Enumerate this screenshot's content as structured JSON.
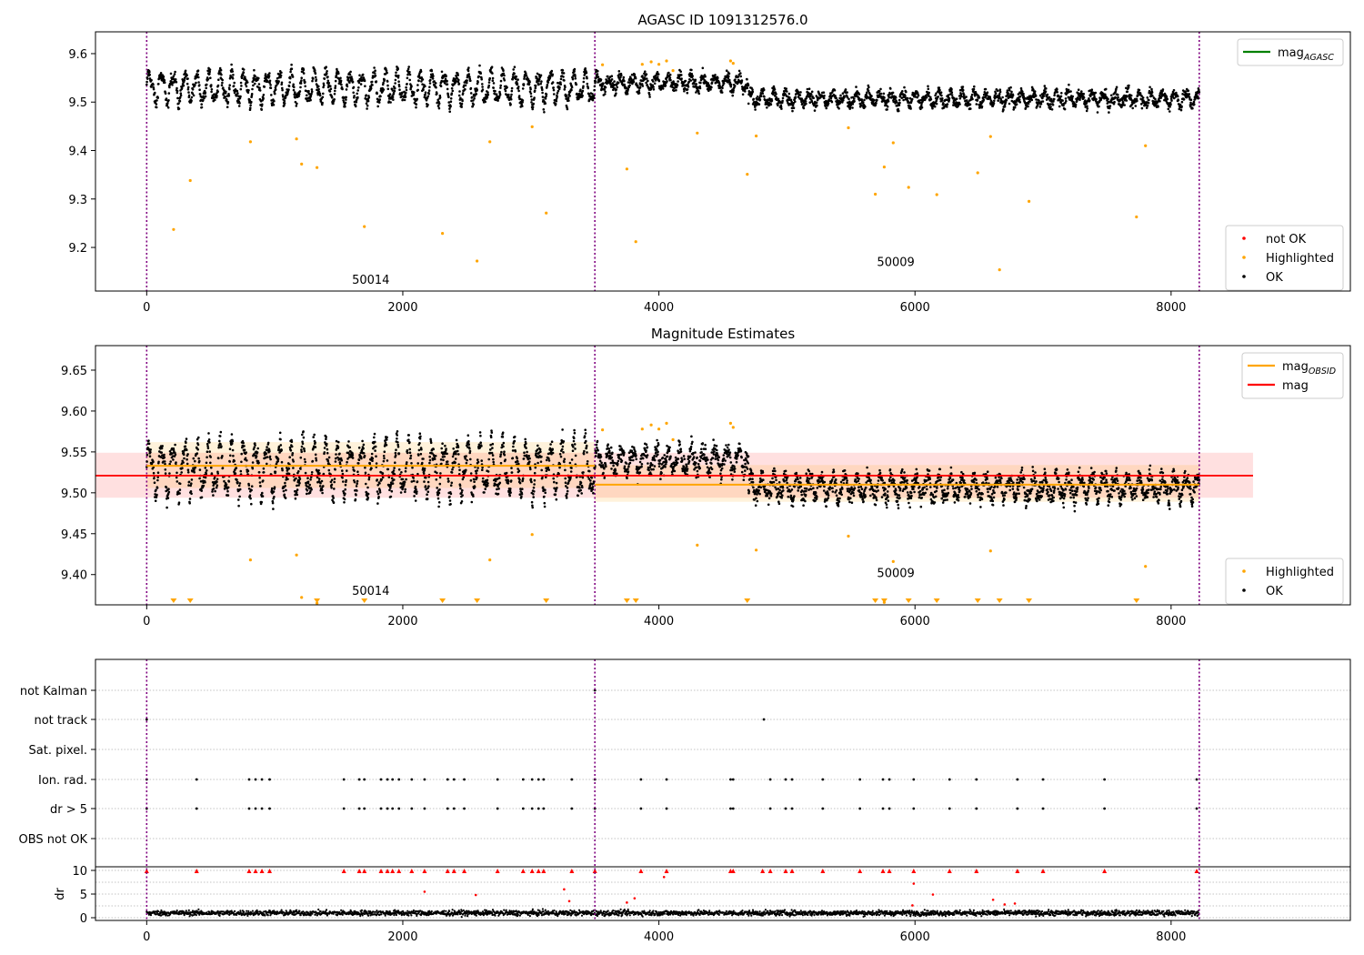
{
  "chart_data": [
    {
      "type": "scatter",
      "title": "AGASC ID 1091312576.0",
      "xlim": [
        -400,
        9400
      ],
      "ylim": [
        9.11,
        9.645
      ],
      "xticks": [
        0,
        2000,
        4000,
        6000,
        8000
      ],
      "yticks": [
        9.2,
        9.3,
        9.4,
        9.5,
        9.6
      ],
      "ytick_labels": [
        "9.2",
        "9.3",
        "9.4",
        "9.5",
        "9.6"
      ],
      "xlabel": "",
      "ylabel": "",
      "grid": false,
      "obsid_boundaries": [
        0,
        3500,
        8220
      ],
      "obsid_labels": [
        {
          "text": "50014",
          "x": 1750,
          "y": 9.125
        },
        {
          "text": "50009",
          "x": 5850,
          "y": 9.162
        }
      ],
      "legend_top": {
        "position": "top-right",
        "entries": [
          {
            "label": "mag",
            "sub": "AGASC",
            "color": "#008000",
            "kind": "line"
          }
        ]
      },
      "legend_bottom": {
        "position": "bottom-right",
        "entries": [
          {
            "label": "not OK",
            "color": "#ff0000",
            "kind": "point"
          },
          {
            "label": "Highlighted",
            "color": "#ffa500",
            "kind": "point"
          },
          {
            "label": "OK",
            "color": "#000000",
            "kind": "point"
          }
        ]
      },
      "segments": [
        {
          "x0": 0,
          "x1": 3500,
          "base": 9.53,
          "amp": 0.028,
          "period": 92,
          "noise": 0.015
        },
        {
          "x0": 3500,
          "x1": 4700,
          "base": 9.54,
          "amp": 0.012,
          "period": 92,
          "noise": 0.015
        },
        {
          "x0": 4700,
          "x1": 8220,
          "base": 9.507,
          "amp": 0.012,
          "period": 92,
          "noise": 0.015
        }
      ],
      "highlighted_points": [
        [
          210,
          9.237
        ],
        [
          340,
          9.338
        ],
        [
          810,
          9.418
        ],
        [
          1170,
          9.424
        ],
        [
          1210,
          9.372
        ],
        [
          1330,
          9.365
        ],
        [
          1700,
          9.243
        ],
        [
          2310,
          9.229
        ],
        [
          2580,
          9.172
        ],
        [
          2680,
          9.418
        ],
        [
          3010,
          9.449
        ],
        [
          3120,
          9.271
        ],
        [
          3560,
          9.577
        ],
        [
          3750,
          9.362
        ],
        [
          3820,
          9.212
        ],
        [
          3870,
          9.578
        ],
        [
          3940,
          9.583
        ],
        [
          4000,
          9.578
        ],
        [
          4060,
          9.585
        ],
        [
          4110,
          9.565
        ],
        [
          4300,
          9.436
        ],
        [
          4560,
          9.585
        ],
        [
          4580,
          9.58
        ],
        [
          4690,
          9.351
        ],
        [
          4760,
          9.43
        ],
        [
          5480,
          9.447
        ],
        [
          5690,
          9.31
        ],
        [
          5760,
          9.366
        ],
        [
          5830,
          9.416
        ],
        [
          5950,
          9.324
        ],
        [
          6170,
          9.309
        ],
        [
          6490,
          9.354
        ],
        [
          6590,
          9.429
        ],
        [
          6660,
          9.154
        ],
        [
          6890,
          9.295
        ],
        [
          7730,
          9.263
        ],
        [
          7800,
          9.41
        ]
      ]
    },
    {
      "type": "scatter",
      "title": "Magnitude Estimates",
      "xlim": [
        -400,
        9400
      ],
      "ylim": [
        9.363,
        9.68
      ],
      "xticks": [
        0,
        2000,
        4000,
        6000,
        8000
      ],
      "yticks": [
        9.4,
        9.45,
        9.5,
        9.55,
        9.6,
        9.65
      ],
      "ytick_labels": [
        "9.40",
        "9.45",
        "9.50",
        "9.55",
        "9.60",
        "9.65"
      ],
      "xlabel": "",
      "ylabel": "",
      "grid": false,
      "obsid_boundaries": [
        0,
        3500,
        8220
      ],
      "obsid_labels": [
        {
          "text": "50014",
          "x": 1750,
          "y": 9.375
        },
        {
          "text": "50009",
          "x": 5850,
          "y": 9.397
        }
      ],
      "mag": {
        "value": 9.521,
        "band": [
          9.494,
          9.549
        ],
        "x0": -400,
        "x1": 8640,
        "color": "#ff0000"
      },
      "mag_obsid": [
        {
          "value": 9.533,
          "band": [
            9.506,
            9.562
          ],
          "x0": 0,
          "x1": 3500
        },
        {
          "value": 9.51,
          "band": [
            9.489,
            9.534
          ],
          "x0": 3500,
          "x1": 8220
        }
      ],
      "clipped_markers_x": [
        210,
        340,
        1330,
        1700,
        2310,
        2580,
        3120,
        3750,
        3820,
        4690,
        5690,
        5760,
        5950,
        6170,
        6490,
        6660,
        6890,
        7730
      ],
      "legend_top": {
        "position": "top-right",
        "entries": [
          {
            "label": "mag",
            "sub": "OBSID",
            "color": "#ffa500",
            "kind": "line"
          },
          {
            "label": "mag",
            "sub": "",
            "color": "#ff0000",
            "kind": "line"
          }
        ]
      },
      "legend_bottom": {
        "position": "bottom-right",
        "entries": [
          {
            "label": "Highlighted",
            "color": "#ffa500",
            "kind": "point"
          },
          {
            "label": "OK",
            "color": "#000000",
            "kind": "point"
          }
        ]
      }
    },
    {
      "type": "scatter",
      "title": "",
      "xlim": [
        -400,
        9400
      ],
      "xticks": [
        0,
        2000,
        4000,
        6000,
        8000
      ],
      "flag_rows": [
        "not Kalman",
        "not track",
        "Sat. pixel.",
        "Ion. rad.",
        "dr > 5",
        "OBS not OK"
      ],
      "flags": {
        "not Kalman": [
          3500
        ],
        "not track": [
          0,
          4820
        ],
        "Sat. pixel.": [],
        "Ion. rad.": [
          0,
          390,
          800,
          850,
          900,
          960,
          1540,
          1660,
          1700,
          1830,
          1880,
          1920,
          1970,
          2070,
          2170,
          2350,
          2400,
          2480,
          2740,
          2940,
          3010,
          3060,
          3100,
          3320,
          3500,
          3860,
          4060,
          4560,
          4580,
          4870,
          4990,
          5040,
          5280,
          5570,
          5750,
          5800,
          5990,
          6270,
          6480,
          6800,
          7000,
          7480,
          8200
        ],
        "dr > 5": [
          0,
          390,
          800,
          850,
          900,
          960,
          1540,
          1660,
          1700,
          1830,
          1880,
          1920,
          1970,
          2070,
          2170,
          2350,
          2400,
          2480,
          2740,
          2940,
          3010,
          3060,
          3100,
          3320,
          3500,
          3860,
          4060,
          4560,
          4580,
          4870,
          4990,
          5040,
          5280,
          5570,
          5750,
          5800,
          5990,
          6270,
          6480,
          6800,
          7000,
          7480,
          8200
        ],
        "OBS not OK": []
      },
      "dr_ylabel": "dr",
      "dr_yticks": [
        0,
        5,
        10
      ],
      "dr_clipped_x": [
        0,
        390,
        800,
        850,
        900,
        960,
        1540,
        1660,
        1700,
        1830,
        1880,
        1920,
        1970,
        2070,
        2170,
        2350,
        2400,
        2480,
        2740,
        2940,
        3010,
        3060,
        3100,
        3320,
        3500,
        3860,
        4060,
        4560,
        4580,
        4810,
        4870,
        4990,
        5040,
        5280,
        5570,
        5750,
        5800,
        5990,
        6270,
        6480,
        6800,
        7000,
        7480,
        8200
      ],
      "dr_outliers": [
        [
          2170,
          5.5
        ],
        [
          2570,
          4.8
        ],
        [
          3260,
          6.0
        ],
        [
          3300,
          3.5
        ],
        [
          3750,
          3.2
        ],
        [
          3810,
          4.1
        ],
        [
          4040,
          8.6
        ],
        [
          5990,
          7.2
        ],
        [
          6140,
          4.9
        ],
        [
          6610,
          3.8
        ],
        [
          6700,
          2.8
        ],
        [
          6780,
          3.0
        ],
        [
          5980,
          2.6
        ]
      ]
    }
  ]
}
